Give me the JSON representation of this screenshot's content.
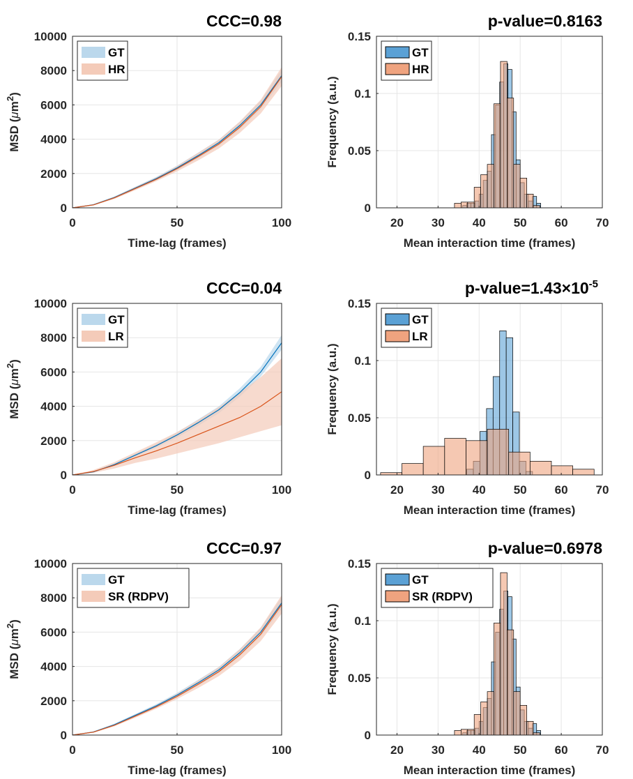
{
  "colors": {
    "gt_line": "#0072BD",
    "gt_band": "#BBD8EC",
    "other_line": "#D95319",
    "other_band": "#F4CBB9",
    "gt_bar": "#5BA1D5",
    "other_bar": "#EFA37F",
    "overlap_bar": "#9C8273",
    "grid": "#E6E6E6",
    "axis": "#262626"
  },
  "chart_data": [
    {
      "type": "line",
      "title": "CCC=0.98",
      "xlabel": "Time-lag (frames)",
      "ylabel": "MSD (μm²)",
      "ylabel_main": "MSD (",
      "ylabel_mu": "μ",
      "ylabel_unit": "m",
      "ylabel_exp": "2",
      "ylabel_close": ")",
      "xlim": [
        0,
        100
      ],
      "ylim": [
        0,
        10000
      ],
      "xticks": [
        "0",
        "50",
        "100"
      ],
      "yticks": [
        "0",
        "2000",
        "4000",
        "6000",
        "8000",
        "10000"
      ],
      "legend": [
        "GT",
        "HR"
      ],
      "legend_position": "top-left",
      "series": [
        {
          "name": "GT",
          "x": [
            0,
            10,
            20,
            30,
            40,
            50,
            60,
            70,
            80,
            90,
            100
          ],
          "y": [
            0,
            180,
            600,
            1150,
            1700,
            2330,
            3040,
            3800,
            4800,
            6000,
            7700
          ],
          "band_lower": [
            0,
            150,
            540,
            1070,
            1600,
            2200,
            2870,
            3620,
            4580,
            5750,
            7350
          ],
          "band_upper": [
            0,
            210,
            660,
            1230,
            1800,
            2460,
            3210,
            3980,
            5020,
            6250,
            8050
          ]
        },
        {
          "name": "HR",
          "x": [
            0,
            10,
            20,
            30,
            40,
            50,
            60,
            70,
            80,
            90,
            100
          ],
          "y": [
            0,
            170,
            580,
            1120,
            1660,
            2280,
            2980,
            3720,
            4700,
            5900,
            7650
          ],
          "band_lower": [
            0,
            140,
            520,
            1030,
            1550,
            2120,
            2760,
            3460,
            4370,
            5500,
            7100
          ],
          "band_upper": [
            0,
            200,
            640,
            1210,
            1770,
            2440,
            3200,
            3980,
            5030,
            6300,
            8200
          ]
        }
      ]
    },
    {
      "type": "bar",
      "title": "p-value=0.8163",
      "xlabel": "Mean interaction time (frames)",
      "ylabel": "Frequency (a.u.)",
      "xlim": [
        15,
        70
      ],
      "ylim": [
        0,
        0.15
      ],
      "xticks": [
        "20",
        "30",
        "40",
        "50",
        "60",
        "70"
      ],
      "yticks": [
        "0",
        "0.05",
        "0.1",
        "0.15"
      ],
      "legend": [
        "GT",
        "HR"
      ],
      "legend_position": "top-left",
      "series": [
        {
          "name": "GT",
          "bin_edges": [
            35,
            36,
            37,
            38,
            39,
            40,
            41,
            42,
            43,
            44,
            45,
            46,
            47,
            48,
            49,
            50,
            51,
            52,
            53,
            54,
            55
          ],
          "values": [
            0,
            0.002,
            0.004,
            0.004,
            0.006,
            0.012,
            0.024,
            0.032,
            0.064,
            0.09,
            0.11,
            0.126,
            0.121,
            0.084,
            0.042,
            0.022,
            0.012,
            0.006,
            0.01,
            0.004
          ]
        },
        {
          "name": "HR",
          "bin_edges": [
            34,
            35.6,
            37.2,
            38.8,
            40.4,
            42,
            43.6,
            45.2,
            46.8,
            48.4,
            50,
            51.6,
            53.2,
            54.8
          ],
          "values": [
            0.004,
            0.005,
            0.005,
            0.018,
            0.029,
            0.038,
            0.091,
            0.128,
            0.096,
            0.038,
            0.026,
            0.012,
            0.002
          ]
        }
      ]
    },
    {
      "type": "line",
      "title": "CCC=0.04",
      "xlabel": "Time-lag (frames)",
      "ylabel": "MSD (μm²)",
      "ylabel_main": "MSD (",
      "ylabel_mu": "μ",
      "ylabel_unit": "m",
      "ylabel_exp": "2",
      "ylabel_close": ")",
      "xlim": [
        0,
        100
      ],
      "ylim": [
        0,
        10000
      ],
      "xticks": [
        "0",
        "50",
        "100"
      ],
      "yticks": [
        "0",
        "2000",
        "4000",
        "6000",
        "8000",
        "10000"
      ],
      "legend": [
        "GT",
        "LR"
      ],
      "legend_position": "top-left",
      "series": [
        {
          "name": "GT",
          "x": [
            0,
            10,
            20,
            30,
            40,
            50,
            60,
            70,
            80,
            90,
            100
          ],
          "y": [
            0,
            180,
            600,
            1150,
            1700,
            2330,
            3040,
            3800,
            4800,
            6000,
            7700
          ],
          "band_lower": [
            0,
            150,
            530,
            1060,
            1590,
            2180,
            2860,
            3600,
            4560,
            5730,
            7300
          ],
          "band_upper": [
            0,
            220,
            670,
            1240,
            1810,
            2480,
            3230,
            4000,
            5050,
            6300,
            8150
          ]
        },
        {
          "name": "LR",
          "x": [
            0,
            10,
            20,
            30,
            40,
            50,
            60,
            70,
            80,
            90,
            100
          ],
          "y": [
            0,
            200,
            560,
            1000,
            1400,
            1850,
            2350,
            2850,
            3350,
            4000,
            4850
          ],
          "band_lower": [
            0,
            120,
            380,
            700,
            950,
            1250,
            1550,
            1850,
            2200,
            2550,
            2900
          ],
          "band_upper": [
            0,
            290,
            740,
            1320,
            1900,
            2500,
            3200,
            3950,
            4800,
            5700,
            6800
          ]
        }
      ]
    },
    {
      "type": "bar",
      "title": "p-value=1.43×10⁻⁵",
      "title_main": "p-value=1.43×10",
      "title_exp": "-5",
      "xlabel": "Mean interaction time (frames)",
      "ylabel": "Frequency (a.u.)",
      "xlim": [
        15,
        70
      ],
      "ylim": [
        0,
        0.15
      ],
      "xticks": [
        "20",
        "30",
        "40",
        "50",
        "60",
        "70"
      ],
      "yticks": [
        "0",
        "0.05",
        "0.1",
        "0.15"
      ],
      "legend": [
        "GT",
        "LR"
      ],
      "legend_position": "top-left",
      "series": [
        {
          "name": "GT",
          "bin_edges": [
            37,
            38.6,
            40.2,
            41.8,
            43.4,
            45,
            46.6,
            48.2,
            49.8,
            51.4,
            53
          ],
          "values": [
            0.005,
            0.012,
            0.038,
            0.058,
            0.086,
            0.126,
            0.12,
            0.055,
            0.012,
            0.003
          ]
        },
        {
          "name": "LR",
          "bin_edges": [
            16,
            21.2,
            26.4,
            31.6,
            36.8,
            42,
            47.2,
            52.4,
            57.6,
            62.8,
            68
          ],
          "values": [
            0.002,
            0.01,
            0.025,
            0.032,
            0.03,
            0.04,
            0.02,
            0.012,
            0.008,
            0.005
          ]
        }
      ]
    },
    {
      "type": "line",
      "title": "CCC=0.97",
      "xlabel": "Time-lag (frames)",
      "ylabel": "MSD (μm²)",
      "ylabel_main": "MSD (",
      "ylabel_mu": "μ",
      "ylabel_unit": "m",
      "ylabel_exp": "2",
      "ylabel_close": ")",
      "xlim": [
        0,
        100
      ],
      "ylim": [
        0,
        10000
      ],
      "xticks": [
        "0",
        "50",
        "100"
      ],
      "yticks": [
        "0",
        "2000",
        "4000",
        "6000",
        "8000",
        "10000"
      ],
      "legend": [
        "GT",
        "SR (RDPV)"
      ],
      "legend_position": "top-left",
      "series": [
        {
          "name": "GT",
          "x": [
            0,
            10,
            20,
            30,
            40,
            50,
            60,
            70,
            80,
            90,
            100
          ],
          "y": [
            0,
            180,
            600,
            1150,
            1700,
            2330,
            3040,
            3800,
            4800,
            6000,
            7700
          ],
          "band_lower": [
            0,
            150,
            540,
            1070,
            1600,
            2200,
            2870,
            3620,
            4580,
            5750,
            7350
          ],
          "band_upper": [
            0,
            210,
            660,
            1230,
            1800,
            2460,
            3210,
            3980,
            5020,
            6250,
            8050
          ]
        },
        {
          "name": "SR (RDPV)",
          "x": [
            0,
            10,
            20,
            30,
            40,
            50,
            60,
            70,
            80,
            90,
            100
          ],
          "y": [
            0,
            170,
            570,
            1100,
            1640,
            2250,
            2950,
            3700,
            4680,
            5880,
            7600
          ],
          "band_lower": [
            0,
            140,
            510,
            1010,
            1530,
            2100,
            2740,
            3440,
            4350,
            5480,
            7080
          ],
          "band_upper": [
            0,
            200,
            630,
            1190,
            1750,
            2410,
            3170,
            3960,
            5010,
            6280,
            8150
          ]
        }
      ]
    },
    {
      "type": "bar",
      "title": "p-value=0.6978",
      "xlabel": "Mean interaction time (frames)",
      "ylabel": "Frequency (a.u.)",
      "xlim": [
        15,
        70
      ],
      "ylim": [
        0,
        0.15
      ],
      "xticks": [
        "20",
        "30",
        "40",
        "50",
        "60",
        "70"
      ],
      "yticks": [
        "0",
        "0.05",
        "0.1",
        "0.15"
      ],
      "legend": [
        "GT",
        "SR (RDPV)"
      ],
      "legend_position": "top-left",
      "series": [
        {
          "name": "GT",
          "bin_edges": [
            35,
            36,
            37,
            38,
            39,
            40,
            41,
            42,
            43,
            44,
            45,
            46,
            47,
            48,
            49,
            50,
            51,
            52,
            53,
            54,
            55
          ],
          "values": [
            0,
            0.002,
            0.004,
            0.004,
            0.006,
            0.012,
            0.024,
            0.032,
            0.064,
            0.09,
            0.11,
            0.126,
            0.121,
            0.084,
            0.042,
            0.022,
            0.012,
            0.006,
            0.01,
            0.004
          ]
        },
        {
          "name": "SR (RDPV)",
          "bin_edges": [
            34,
            35.6,
            37.2,
            38.8,
            40.4,
            42,
            43.6,
            45.2,
            46.8,
            48.4,
            50,
            51.6,
            53.2,
            54.8
          ],
          "values": [
            0.004,
            0.005,
            0.005,
            0.018,
            0.029,
            0.038,
            0.098,
            0.142,
            0.092,
            0.038,
            0.026,
            0.012,
            0.002
          ]
        }
      ]
    }
  ]
}
